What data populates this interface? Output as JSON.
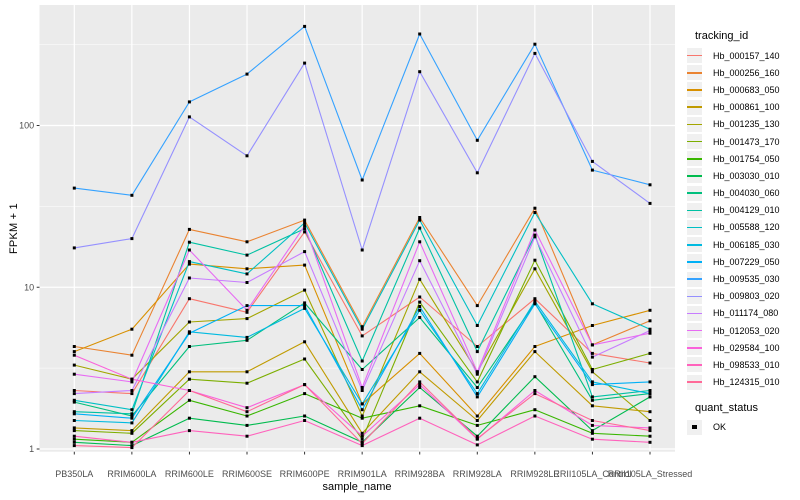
{
  "style": {
    "panel_bg": "#EBEBEB",
    "grid_color": "#FFFFFF",
    "axis_text_color": "#4D4D4D",
    "axis_title_color": "#000000",
    "tick_mark_color": "#333333",
    "point_color": "#000000",
    "legend_key_bg": "#F0F0F0"
  },
  "chart_data": {
    "type": "line",
    "title": "",
    "xlabel": "sample_name",
    "ylabel": "FPKM + 1",
    "y_scale": "log10",
    "grid": true,
    "legend_position": "right",
    "y_ticks": [
      1,
      10,
      100
    ],
    "y_tick_labels": [
      "1",
      "10",
      "100"
    ],
    "y_minor_ticks": [
      3.162,
      31.62,
      316.23
    ],
    "ylim": [
      0.95,
      556
    ],
    "categories": [
      "PB350LA",
      "RRIM600LA",
      "RRIM600LE",
      "RRIM600SE",
      "RRIM600PE",
      "RRIM901LA",
      "RRIM928BA",
      "RRIM928LA",
      "RRIM928LE",
      "RRII105LA_Control",
      "RRII105LA_Stressed"
    ],
    "legend": {
      "title": "tracking_id"
    },
    "legend2": {
      "title": "quant_status",
      "items": [
        {
          "label": "OK",
          "marker": "black-square"
        }
      ]
    },
    "series": [
      {
        "name": "Hb_000157_140",
        "color": "#F8766D",
        "values": [
          2.3,
          2.2,
          8.5,
          7.0,
          22.0,
          5.0,
          8.7,
          4.3,
          8.5,
          3.9,
          3.4
        ]
      },
      {
        "name": "Hb_000256_160",
        "color": "#EA8331",
        "values": [
          4.3,
          3.8,
          22.8,
          19.1,
          26.0,
          5.7,
          27.0,
          7.7,
          30.8,
          4.4,
          6.2
        ]
      },
      {
        "name": "Hb_000683_050",
        "color": "#D89000",
        "values": [
          4.0,
          5.5,
          13.9,
          13.0,
          13.7,
          1.9,
          3.9,
          1.6,
          4.3,
          5.8,
          7.2
        ]
      },
      {
        "name": "Hb_000861_100",
        "color": "#C09B00",
        "values": [
          1.35,
          1.3,
          3.0,
          3.0,
          4.6,
          1.25,
          3.0,
          1.5,
          4.0,
          1.85,
          1.7
        ]
      },
      {
        "name": "Hb_001235_130",
        "color": "#A3A500",
        "values": [
          3.3,
          2.7,
          6.1,
          6.4,
          9.6,
          1.6,
          11.2,
          3.0,
          13.0,
          3.0,
          1.5
        ]
      },
      {
        "name": "Hb_001473_170",
        "color": "#7CAE00",
        "values": [
          1.3,
          1.25,
          2.7,
          2.55,
          3.6,
          1.15,
          8.1,
          2.6,
          14.7,
          3.1,
          3.9
        ]
      },
      {
        "name": "Hb_001754_050",
        "color": "#39B600",
        "values": [
          1.15,
          1.1,
          2.0,
          1.6,
          2.2,
          1.55,
          1.85,
          1.4,
          1.75,
          1.25,
          1.2
        ]
      },
      {
        "name": "Hb_003030_010",
        "color": "#00BB4E",
        "values": [
          1.1,
          1.05,
          1.55,
          1.4,
          1.6,
          1.1,
          2.4,
          1.2,
          2.8,
          1.3,
          2.1
        ]
      },
      {
        "name": "Hb_004030_060",
        "color": "#00BF7D",
        "values": [
          1.95,
          1.6,
          4.3,
          4.7,
          8.0,
          3.1,
          6.5,
          2.4,
          8.0,
          2.0,
          2.2
        ]
      },
      {
        "name": "Hb_004129_010",
        "color": "#00C1A3",
        "values": [
          1.7,
          1.65,
          19.0,
          15.8,
          23.0,
          3.5,
          23.2,
          4.0,
          21.0,
          2.1,
          2.3
        ]
      },
      {
        "name": "Hb_005588_120",
        "color": "#00BFC4",
        "values": [
          2.0,
          1.75,
          14.4,
          12.1,
          25.0,
          5.5,
          26.0,
          5.8,
          29.0,
          7.9,
          5.5
        ]
      },
      {
        "name": "Hb_006185_030",
        "color": "#00BAE0",
        "values": [
          1.5,
          1.45,
          5.3,
          4.9,
          7.4,
          1.9,
          7.2,
          2.2,
          8.2,
          2.6,
          2.2
        ]
      },
      {
        "name": "Hb_007229_050",
        "color": "#00B0F6",
        "values": [
          1.65,
          1.55,
          5.2,
          7.7,
          7.7,
          1.75,
          7.6,
          2.1,
          7.9,
          2.5,
          2.6
        ]
      },
      {
        "name": "Hb_009535_030",
        "color": "#35A2FF",
        "values": [
          41,
          37,
          140,
          208,
          410,
          46,
          368,
          81,
          318,
          53,
          43
        ]
      },
      {
        "name": "Hb_009803_020",
        "color": "#9590FF",
        "values": [
          17.5,
          20,
          113,
          65,
          243,
          17,
          215,
          51,
          279,
          60,
          33
        ]
      },
      {
        "name": "Hb_011174_080",
        "color": "#C77CFF",
        "values": [
          2.2,
          2.3,
          11.4,
          10.7,
          16.6,
          2.3,
          14.6,
          2.9,
          20.5,
          3.7,
          5.4
        ]
      },
      {
        "name": "Hb_012053_020",
        "color": "#E76BF3",
        "values": [
          2.9,
          2.6,
          17.0,
          7.2,
          24.0,
          2.4,
          19.1,
          3.0,
          22.6,
          4.4,
          5.2
        ]
      },
      {
        "name": "Hb_029584_100",
        "color": "#FA62DB",
        "values": [
          3.8,
          2.7,
          2.3,
          1.8,
          2.5,
          1.2,
          2.5,
          1.15,
          2.3,
          1.4,
          1.35
        ]
      },
      {
        "name": "Hb_098533_010",
        "color": "#FF62BC",
        "values": [
          1.2,
          1.1,
          1.3,
          1.2,
          1.5,
          1.05,
          1.55,
          1.06,
          1.6,
          1.15,
          1.1
        ]
      },
      {
        "name": "Hb_124315_010",
        "color": "#FF6A98",
        "values": [
          1.05,
          1.02,
          2.3,
          1.7,
          2.5,
          1.08,
          2.6,
          1.16,
          2.2,
          1.5,
          1.3
        ]
      }
    ]
  }
}
